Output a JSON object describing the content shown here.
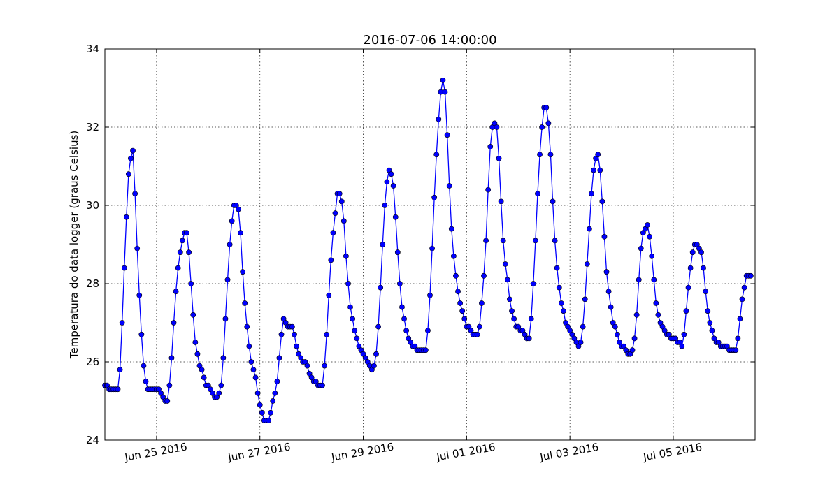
{
  "chart_data": {
    "type": "line",
    "title": "2016-07-06 14:00:00",
    "xlabel": "",
    "ylabel": "Temperatura do data logger (graus Celsius)",
    "xlim": [
      "2016-06-24T00:00",
      "2016-07-06T14:00"
    ],
    "ylim": [
      24,
      34
    ],
    "yticks": [
      24,
      26,
      28,
      30,
      32,
      34
    ],
    "xticks": [
      {
        "date": "2016-06-25T00:00",
        "label": "Jun 25 2016"
      },
      {
        "date": "2016-06-27T00:00",
        "label": "Jun 27 2016"
      },
      {
        "date": "2016-06-29T00:00",
        "label": "Jun 29 2016"
      },
      {
        "date": "2016-07-01T00:00",
        "label": "Jul 01 2016"
      },
      {
        "date": "2016-07-03T00:00",
        "label": "Jul 03 2016"
      },
      {
        "date": "2016-07-05T00:00",
        "label": "Jul 05 2016"
      }
    ],
    "grid": true,
    "start": "2016-06-24T00:00",
    "interval_hours": 1,
    "series": [
      {
        "color": "#0000ff",
        "marker": "circle",
        "values": [
          25.4,
          25.4,
          25.3,
          25.3,
          25.3,
          25.3,
          25.3,
          25.8,
          27.0,
          28.4,
          29.7,
          30.8,
          31.2,
          31.4,
          30.3,
          28.9,
          27.7,
          26.7,
          25.9,
          25.5,
          25.3,
          25.3,
          25.3,
          25.3,
          25.3,
          25.3,
          25.2,
          25.1,
          25.0,
          25.0,
          25.4,
          26.1,
          27.0,
          27.8,
          28.4,
          28.8,
          29.1,
          29.3,
          29.3,
          28.8,
          28.0,
          27.2,
          26.5,
          26.2,
          25.9,
          25.8,
          25.6,
          25.4,
          25.4,
          25.3,
          25.2,
          25.1,
          25.1,
          25.2,
          25.4,
          26.1,
          27.1,
          28.1,
          29.0,
          29.6,
          30.0,
          30.0,
          29.9,
          29.3,
          28.3,
          27.5,
          26.9,
          26.4,
          26.0,
          25.8,
          25.6,
          25.2,
          24.9,
          24.7,
          24.5,
          24.5,
          24.5,
          24.7,
          25.0,
          25.2,
          25.5,
          26.1,
          26.7,
          27.1,
          27.0,
          26.9,
          26.9,
          26.9,
          26.7,
          26.4,
          26.2,
          26.1,
          26.0,
          26.0,
          25.9,
          25.7,
          25.6,
          25.5,
          25.5,
          25.4,
          25.4,
          25.4,
          25.9,
          26.7,
          27.7,
          28.6,
          29.3,
          29.8,
          30.3,
          30.3,
          30.1,
          29.6,
          28.7,
          28.0,
          27.4,
          27.1,
          26.8,
          26.6,
          26.4,
          26.3,
          26.2,
          26.1,
          26.0,
          25.9,
          25.8,
          25.9,
          26.2,
          26.9,
          27.9,
          29.0,
          30.0,
          30.6,
          30.9,
          30.8,
          30.5,
          29.7,
          28.8,
          28.0,
          27.4,
          27.1,
          26.8,
          26.6,
          26.5,
          26.4,
          26.4,
          26.3,
          26.3,
          26.3,
          26.3,
          26.3,
          26.8,
          27.7,
          28.9,
          30.2,
          31.3,
          32.2,
          32.9,
          33.2,
          32.9,
          31.8,
          30.5,
          29.4,
          28.7,
          28.2,
          27.8,
          27.5,
          27.3,
          27.1,
          26.9,
          26.9,
          26.8,
          26.7,
          26.7,
          26.7,
          26.9,
          27.5,
          28.2,
          29.1,
          30.4,
          31.5,
          32.0,
          32.1,
          32.0,
          31.2,
          30.1,
          29.1,
          28.5,
          28.1,
          27.6,
          27.3,
          27.1,
          26.9,
          26.9,
          26.8,
          26.8,
          26.7,
          26.6,
          26.6,
          27.1,
          28.0,
          29.1,
          30.3,
          31.3,
          32.0,
          32.5,
          32.5,
          32.1,
          31.3,
          30.1,
          29.1,
          28.4,
          27.9,
          27.5,
          27.3,
          27.0,
          26.9,
          26.8,
          26.7,
          26.6,
          26.5,
          26.4,
          26.5,
          26.9,
          27.6,
          28.5,
          29.4,
          30.3,
          30.9,
          31.2,
          31.3,
          30.9,
          30.1,
          29.2,
          28.3,
          27.8,
          27.4,
          27.0,
          26.9,
          26.7,
          26.5,
          26.4,
          26.4,
          26.3,
          26.2,
          26.2,
          26.3,
          26.6,
          27.2,
          28.1,
          28.9,
          29.3,
          29.4,
          29.5,
          29.2,
          28.7,
          28.1,
          27.5,
          27.2,
          27.0,
          26.9,
          26.8,
          26.7,
          26.7,
          26.6,
          26.6,
          26.6,
          26.5,
          26.5,
          26.4,
          26.7,
          27.3,
          27.9,
          28.4,
          28.8,
          29.0,
          29.0,
          28.9,
          28.8,
          28.4,
          27.8,
          27.3,
          27.0,
          26.8,
          26.6,
          26.5,
          26.5,
          26.4,
          26.4,
          26.4,
          26.4,
          26.3,
          26.3,
          26.3,
          26.3,
          26.6,
          27.1,
          27.6,
          27.9,
          28.2,
          28.2,
          28.2
        ]
      }
    ]
  }
}
